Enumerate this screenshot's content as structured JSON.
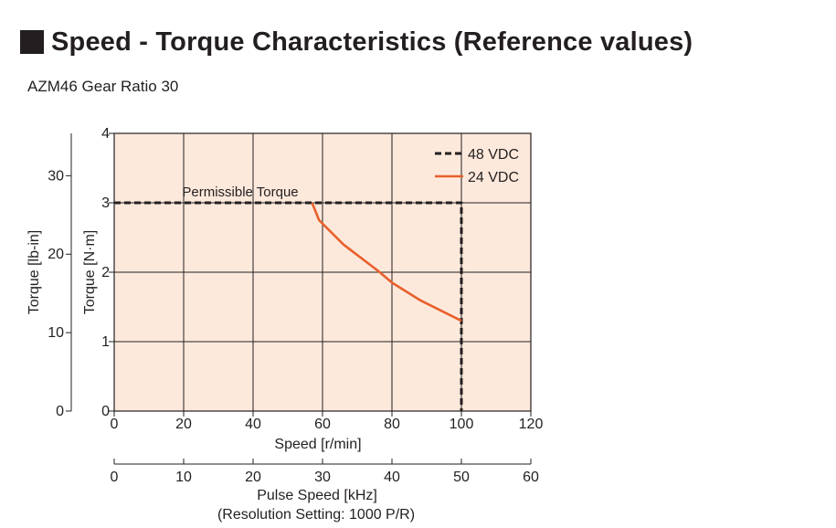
{
  "header": {
    "title": "Speed - Torque Characteristics (Reference values)",
    "subtitle": "AZM46  Gear Ratio 30"
  },
  "chart_data": {
    "type": "line",
    "x": {
      "label": "Speed [r/min]",
      "range": [
        0,
        120
      ],
      "ticks": [
        0,
        20,
        40,
        60,
        80,
        100,
        120
      ]
    },
    "x2": {
      "label": "Pulse Speed [kHz]",
      "sublabel": "(Resolution Setting: 1000 P/R)",
      "range": [
        0,
        60
      ],
      "ticks": [
        0,
        10,
        20,
        30,
        40,
        50,
        60
      ]
    },
    "y": {
      "label": "Torque [N·m]",
      "range": [
        0,
        4
      ],
      "ticks": [
        0,
        1,
        2,
        3,
        4
      ]
    },
    "y2": {
      "label": "Torque [lb-in]",
      "range": [
        0,
        35.4
      ],
      "ticks": [
        0,
        10,
        20,
        30
      ]
    },
    "grid": true,
    "legend": "top-right",
    "series": [
      {
        "name": "48 VDC",
        "style": "dashed",
        "color": "#231f20",
        "points": [
          [
            0,
            3
          ],
          [
            100,
            3
          ],
          [
            100,
            0
          ]
        ]
      },
      {
        "name": "24 VDC",
        "style": "solid",
        "color": "#e8602c",
        "points": [
          [
            57,
            3
          ],
          [
            59,
            2.75
          ],
          [
            66,
            2.4
          ],
          [
            76,
            2.02
          ],
          [
            80,
            1.85
          ],
          [
            88,
            1.6
          ],
          [
            100,
            1.3
          ]
        ]
      }
    ],
    "annotations": [
      {
        "text": "Permissible Torque"
      }
    ],
    "colors": {
      "plot_background": "#fde9dc",
      "grid": "#231f20",
      "line_24vdc": "#e8602c",
      "line_48vdc": "#231f20"
    }
  }
}
